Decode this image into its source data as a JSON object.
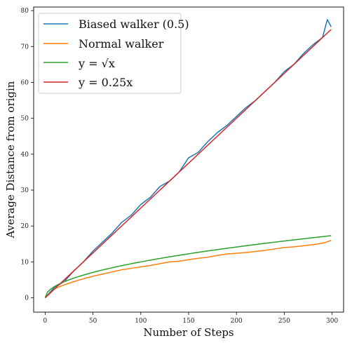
{
  "chart_data": {
    "type": "line",
    "xlabel": "Number of Steps",
    "ylabel": "Average Distance from origin",
    "xlim": [
      -12,
      312
    ],
    "ylim": [
      -4,
      81
    ],
    "xticks": [
      0,
      50,
      100,
      150,
      200,
      250,
      300
    ],
    "yticks": [
      0,
      10,
      20,
      30,
      40,
      50,
      60,
      70,
      80
    ],
    "grid": false,
    "legend": "top-left",
    "series": [
      {
        "name": "Biased walker (0.5)",
        "color": "#1f77b4",
        "x": [
          0,
          10,
          20,
          30,
          40,
          50,
          60,
          70,
          80,
          90,
          100,
          110,
          120,
          130,
          140,
          150,
          160,
          170,
          180,
          190,
          200,
          210,
          220,
          230,
          240,
          250,
          260,
          270,
          280,
          290,
          295,
          299
        ],
        "y": [
          0,
          3,
          4.5,
          7.5,
          10,
          13,
          15.5,
          18,
          21,
          23,
          26,
          28,
          31,
          32.5,
          35,
          39,
          40.5,
          43.5,
          46,
          48,
          50.5,
          53,
          55,
          57.5,
          60,
          63,
          65,
          68,
          70.5,
          72.5,
          77.5,
          75.5
        ]
      },
      {
        "name": "Normal walker",
        "color": "#ff7f0e",
        "x": [
          0,
          10,
          20,
          30,
          40,
          50,
          60,
          70,
          80,
          90,
          100,
          110,
          120,
          130,
          140,
          150,
          160,
          170,
          180,
          190,
          200,
          210,
          220,
          230,
          240,
          250,
          260,
          270,
          280,
          290,
          295,
          299
        ],
        "y": [
          0,
          2.5,
          3.6,
          4.5,
          5.3,
          6,
          6.6,
          7.2,
          7.8,
          8.2,
          8.6,
          9,
          9.5,
          10,
          10.2,
          10.6,
          11,
          11.3,
          11.8,
          12.2,
          12.4,
          12.6,
          12.9,
          13.2,
          13.6,
          14,
          14.2,
          14.5,
          14.8,
          15.2,
          15.6,
          16
        ]
      },
      {
        "name": "y = √x",
        "color": "#2ca02c",
        "function": "sqrt",
        "x_range": [
          0,
          299
        ]
      },
      {
        "name": "y = 0.25x",
        "color": "#d62728",
        "function": "linear",
        "slope": 0.25,
        "x_range": [
          0,
          299
        ]
      }
    ]
  }
}
